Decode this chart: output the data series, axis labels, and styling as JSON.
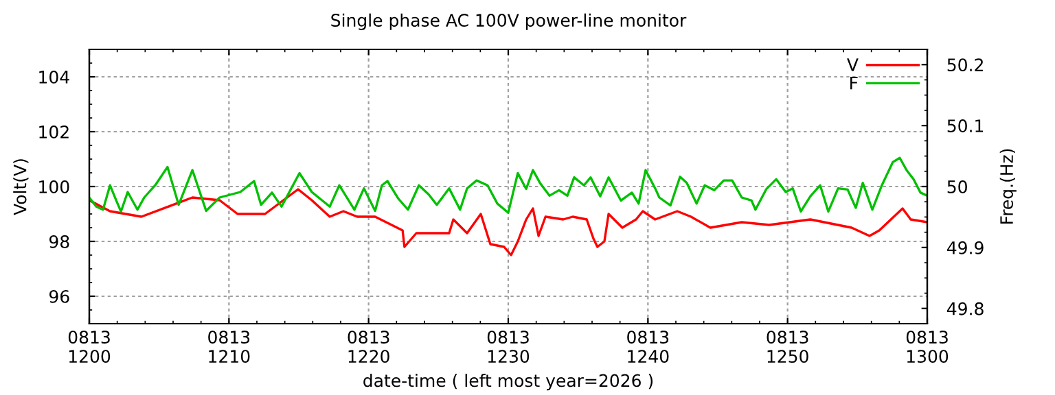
{
  "chart_data": {
    "type": "line",
    "title": "Single phase AC 100V power-line monitor",
    "xlabel": "date-time ( left most year=2026 )",
    "ylabel": "Volt(V)",
    "y2label": "Freq.(Hz)",
    "xlim": [
      "2026-08-13T12:00",
      "2026-08-13T13:00"
    ],
    "xticks": [
      {
        "value": "2026-08-13T12:00",
        "label": "0813\n1200"
      },
      {
        "value": "2026-08-13T12:10",
        "label": "0813\n1210"
      },
      {
        "value": "2026-08-13T12:20",
        "label": "0813\n1220"
      },
      {
        "value": "2026-08-13T12:30",
        "label": "0813\n1230"
      },
      {
        "value": "2026-08-13T12:40",
        "label": "0813\n1240"
      },
      {
        "value": "2026-08-13T12:50",
        "label": "0813\n1250"
      },
      {
        "value": "2026-08-13T13:00",
        "label": "0813\n1300"
      }
    ],
    "ylim": [
      95,
      105
    ],
    "yticks": [
      96,
      98,
      100,
      102,
      104
    ],
    "y2lim": [
      49.775,
      50.225
    ],
    "y2ticks": [
      49.8,
      49.9,
      50,
      50.1,
      50.2
    ],
    "grid": true,
    "legend": "top right",
    "line_style": "solid",
    "marker": "none",
    "series": [
      {
        "name": "V",
        "color": "#ff0000",
        "x": [
          "2026-08-13T12:00:00",
          "2026-08-13T12:01:29",
          "2026-08-13T12:03:44",
          "2026-08-13T12:07:23",
          "2026-08-13T12:09:20",
          "2026-08-13T12:10:37",
          "2026-08-13T12:12:35",
          "2026-08-13T12:14:57",
          "2026-08-13T12:15:56",
          "2026-08-13T12:17:13",
          "2026-08-13T12:18:12",
          "2026-08-13T12:19:11",
          "2026-08-13T12:20:28",
          "2026-08-13T12:22:26",
          "2026-08-13T12:22:34",
          "2026-08-13T12:23:25",
          "2026-08-13T12:25:46",
          "2026-08-13T12:26:04",
          "2026-08-13T12:27:03",
          "2026-08-13T12:28:02",
          "2026-08-13T12:28:43",
          "2026-08-13T12:29:42",
          "2026-08-13T12:30:12",
          "2026-08-13T12:30:41",
          "2026-08-13T12:31:17",
          "2026-08-13T12:31:46",
          "2026-08-13T12:32:10",
          "2026-08-13T12:32:40",
          "2026-08-13T12:33:56",
          "2026-08-13T12:34:37",
          "2026-08-13T12:35:37",
          "2026-08-13T12:36:06",
          "2026-08-13T12:36:23",
          "2026-08-13T12:36:53",
          "2026-08-13T12:37:11",
          "2026-08-13T12:38:10",
          "2026-08-13T12:39:09",
          "2026-08-13T12:39:38",
          "2026-08-13T12:40:31",
          "2026-08-13T12:42:06",
          "2026-08-13T12:43:05",
          "2026-08-13T12:44:28",
          "2026-08-13T12:46:43",
          "2026-08-13T12:48:41",
          "2026-08-13T12:51:38",
          "2026-08-13T12:54:35",
          "2026-08-13T12:55:52",
          "2026-08-13T12:56:34",
          "2026-08-13T12:58:14",
          "2026-08-13T12:58:49",
          "2026-08-13T13:00:00"
        ],
        "values": [
          99.5,
          99.1,
          98.9,
          99.6,
          99.5,
          99.0,
          99.0,
          99.9,
          99.5,
          98.9,
          99.1,
          98.9,
          98.9,
          98.4,
          97.8,
          98.3,
          98.3,
          98.8,
          98.3,
          99.0,
          97.9,
          97.8,
          97.5,
          98.0,
          98.8,
          99.2,
          98.2,
          98.9,
          98.8,
          98.9,
          98.8,
          98.1,
          97.8,
          98.0,
          99.0,
          98.5,
          98.8,
          99.1,
          98.8,
          99.1,
          98.9,
          98.5,
          98.7,
          98.6,
          98.8,
          98.5,
          98.2,
          98.4,
          99.2,
          98.8,
          98.7
        ]
      },
      {
        "name": "F",
        "color": "#00c000",
        "axis": "y2",
        "x": [
          "2026-08-13T12:00:00",
          "2026-08-13T12:00:30",
          "2026-08-13T12:00:59",
          "2026-08-13T12:01:29",
          "2026-08-13T12:01:58",
          "2026-08-13T12:02:16",
          "2026-08-13T12:02:45",
          "2026-08-13T12:03:27",
          "2026-08-13T12:03:56",
          "2026-08-13T12:04:43",
          "2026-08-13T12:05:36",
          "2026-08-13T12:06:24",
          "2026-08-13T12:07:23",
          "2026-08-13T12:08:22",
          "2026-08-13T12:09:20",
          "2026-08-13T12:10:49",
          "2026-08-13T12:11:48",
          "2026-08-13T12:12:18",
          "2026-08-13T12:13:05",
          "2026-08-13T12:13:46",
          "2026-08-13T12:15:03",
          "2026-08-13T12:15:56",
          "2026-08-13T12:17:13",
          "2026-08-13T12:17:54",
          "2026-08-13T12:18:59",
          "2026-08-13T12:19:40",
          "2026-08-13T12:20:28",
          "2026-08-13T12:20:57",
          "2026-08-13T12:21:21",
          "2026-08-13T12:22:08",
          "2026-08-13T12:22:49",
          "2026-08-13T12:23:36",
          "2026-08-13T12:24:18",
          "2026-08-13T12:24:53",
          "2026-08-13T12:25:46",
          "2026-08-13T12:26:33",
          "2026-08-13T12:27:03",
          "2026-08-13T12:27:44",
          "2026-08-13T12:28:31",
          "2026-08-13T12:29:13",
          "2026-08-13T12:30:00",
          "2026-08-13T12:30:41",
          "2026-08-13T12:31:17",
          "2026-08-13T12:31:46",
          "2026-08-13T12:32:16",
          "2026-08-13T12:32:57",
          "2026-08-13T12:33:38",
          "2026-08-13T12:34:14",
          "2026-08-13T12:34:43",
          "2026-08-13T12:35:25",
          "2026-08-13T12:35:54",
          "2026-08-13T12:36:35",
          "2026-08-13T12:37:11",
          "2026-08-13T12:38:04",
          "2026-08-13T12:38:51",
          "2026-08-13T12:39:20",
          "2026-08-13T12:39:50",
          "2026-08-13T12:40:31",
          "2026-08-13T12:40:49",
          "2026-08-13T12:41:37",
          "2026-08-13T12:42:18",
          "2026-08-13T12:42:47",
          "2026-08-13T12:43:29",
          "2026-08-13T12:44:04",
          "2026-08-13T12:44:45",
          "2026-08-13T12:45:26",
          "2026-08-13T12:46:02",
          "2026-08-13T12:46:43",
          "2026-08-13T12:47:25",
          "2026-08-13T12:47:42",
          "2026-08-13T12:48:29",
          "2026-08-13T12:49:11",
          "2026-08-13T12:49:52",
          "2026-08-13T12:50:22",
          "2026-08-13T12:50:57",
          "2026-08-13T12:51:38",
          "2026-08-13T12:52:20",
          "2026-08-13T12:52:55",
          "2026-08-13T12:53:37",
          "2026-08-13T12:54:18",
          "2026-08-13T12:54:53",
          "2026-08-13T12:55:23",
          "2026-08-13T12:56:04",
          "2026-08-13T12:56:45",
          "2026-08-13T12:57:32",
          "2026-08-13T12:58:02",
          "2026-08-13T12:58:31",
          "2026-08-13T12:59:01",
          "2026-08-13T12:59:31",
          "2026-08-13T13:00:00"
        ],
        "values": [
          49.982,
          49.967,
          49.962,
          50.002,
          49.975,
          49.959,
          49.991,
          49.962,
          49.982,
          50.002,
          50.032,
          49.97,
          50.027,
          49.96,
          49.982,
          49.991,
          50.009,
          49.97,
          49.99,
          49.967,
          50.022,
          49.991,
          49.967,
          50.002,
          49.962,
          49.997,
          49.96,
          50.002,
          50.009,
          49.98,
          49.962,
          50.002,
          49.987,
          49.97,
          49.997,
          49.962,
          49.997,
          50.01,
          50.002,
          49.972,
          49.957,
          50.022,
          49.996,
          50.027,
          50.006,
          49.985,
          49.994,
          49.985,
          50.015,
          50.002,
          50.015,
          49.984,
          50.015,
          49.977,
          49.99,
          49.972,
          50.027,
          49.997,
          49.982,
          49.969,
          50.016,
          50.006,
          49.972,
          50.002,
          49.994,
          50.01,
          50.01,
          49.982,
          49.977,
          49.962,
          49.996,
          50.012,
          49.991,
          49.997,
          49.959,
          49.984,
          50.002,
          49.959,
          49.997,
          49.995,
          49.965,
          50.006,
          49.962,
          50.002,
          50.04,
          50.047,
          50.027,
          50.012,
          49.99,
          49.985
        ]
      }
    ]
  }
}
